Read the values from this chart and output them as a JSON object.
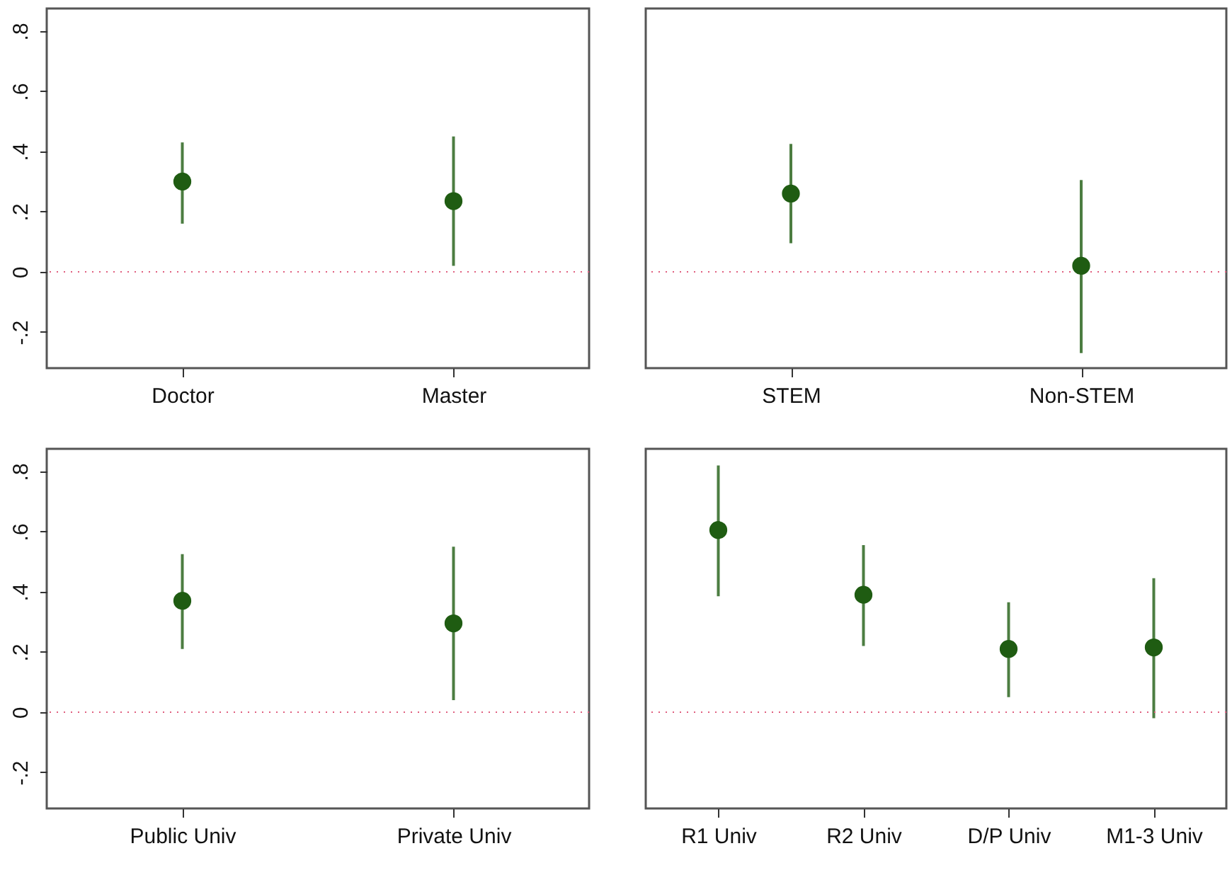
{
  "chart_data": [
    {
      "type": "scatter",
      "categories": [
        "Doctor",
        "Master"
      ],
      "values": [
        0.3,
        0.235
      ],
      "errors": [
        [
          0.16,
          0.43
        ],
        [
          0.02,
          0.45
        ]
      ],
      "color": "#1f5c12",
      "marker": "circle",
      "ylim": [
        -0.32,
        0.875
      ],
      "yticks": [
        {
          "value": -0.2,
          "label": "-.2"
        },
        0,
        {
          "value": 0.2,
          "label": ".2"
        },
        {
          "value": 0.4,
          "label": ".4"
        },
        {
          "value": 0.6,
          "label": ".6"
        },
        {
          "value": 0.8,
          "label": ".8"
        }
      ],
      "ref_lines": [
        {
          "axis": "y",
          "value": 0,
          "color": "#e06080",
          "line_style": "dotted"
        }
      ]
    },
    {
      "type": "scatter",
      "categories": [
        "STEM",
        "Non-STEM"
      ],
      "values": [
        0.26,
        0.02
      ],
      "errors": [
        [
          0.095,
          0.425
        ],
        [
          -0.27,
          0.305
        ]
      ],
      "color": "#1f5c12",
      "marker": "circle",
      "ylim": [
        -0.32,
        0.875
      ],
      "tick_labels": "x",
      "ref_lines": [
        {
          "axis": "y",
          "value": 0,
          "color": "#e06080",
          "line_style": "dotted"
        }
      ]
    },
    {
      "type": "scatter",
      "categories": [
        "Public Univ",
        "Private Univ"
      ],
      "values": [
        0.37,
        0.295
      ],
      "errors": [
        [
          0.21,
          0.525
        ],
        [
          0.04,
          0.55
        ]
      ],
      "color": "#1f5c12",
      "marker": "circle",
      "ylim": [
        -0.32,
        0.875
      ],
      "yticks": [
        {
          "value": -0.2,
          "label": "-.2"
        },
        0,
        {
          "value": 0.2,
          "label": ".2"
        },
        {
          "value": 0.4,
          "label": ".4"
        },
        {
          "value": 0.6,
          "label": ".6"
        },
        {
          "value": 0.8,
          "label": ".8"
        }
      ],
      "ref_lines": [
        {
          "axis": "y",
          "value": 0,
          "color": "#e06080",
          "line_style": "dotted"
        }
      ]
    },
    {
      "type": "scatter",
      "categories": [
        "R1 Univ",
        "R2 Univ",
        "D/P Univ",
        "M1-3 Univ"
      ],
      "values": [
        0.605,
        0.39,
        0.21,
        0.215
      ],
      "errors": [
        [
          0.385,
          0.82
        ],
        [
          0.22,
          0.555
        ],
        [
          0.05,
          0.365
        ],
        [
          -0.02,
          0.445
        ]
      ],
      "color": "#1f5c12",
      "marker": "circle",
      "ylim": [
        -0.32,
        0.875
      ],
      "tick_labels": "x",
      "ref_lines": [
        {
          "axis": "y",
          "value": 0,
          "color": "#e06080",
          "line_style": "dotted"
        }
      ]
    }
  ]
}
